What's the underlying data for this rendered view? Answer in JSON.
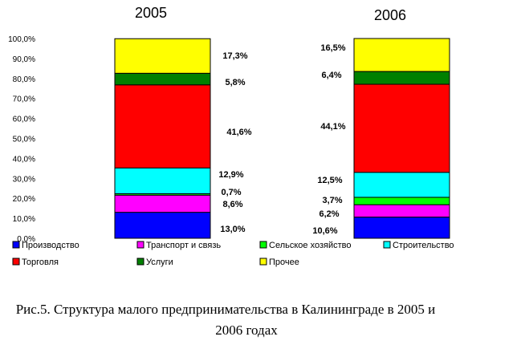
{
  "chart_data": {
    "type": "bar",
    "stacked": true,
    "categories": [
      "2005",
      "2006"
    ],
    "series": [
      {
        "name": "Производство",
        "color": "#0000ff",
        "values": [
          13.0,
          10.6
        ],
        "labels": [
          "13,0%",
          "10,6%"
        ]
      },
      {
        "name": "Транспорт и связь",
        "color": "#ff00ff",
        "values": [
          8.6,
          6.2
        ],
        "labels": [
          "8,6%",
          "6,2%"
        ]
      },
      {
        "name": "Сельское хозяйство",
        "color": "#00ff00",
        "values": [
          0.7,
          3.7
        ],
        "labels": [
          "0,7%",
          "3,7%"
        ]
      },
      {
        "name": "Строительство",
        "color": "#00ffff",
        "values": [
          12.9,
          12.5
        ],
        "labels": [
          "12,9%",
          "12,5%"
        ]
      },
      {
        "name": "Торговля",
        "color": "#ff0000",
        "values": [
          41.6,
          44.1
        ],
        "labels": [
          "41,6%",
          "44,1%"
        ]
      },
      {
        "name": "Услуги",
        "color": "#008000",
        "values": [
          5.8,
          6.4
        ],
        "labels": [
          "5,8%",
          "6,4%"
        ]
      },
      {
        "name": "Прочее",
        "color": "#ffff00",
        "values": [
          17.3,
          16.5
        ],
        "labels": [
          "17,3%",
          "16,5%"
        ]
      }
    ],
    "ylim": [
      0,
      100
    ],
    "yticks": [
      "0,0%",
      "10,0%",
      "20,0%",
      "30,0%",
      "40,0%",
      "50,0%",
      "60,0%",
      "70,0%",
      "80,0%",
      "90,0%",
      "100,0%"
    ],
    "grid": false,
    "legend": "bottom"
  },
  "caption": {
    "line1": "Рис.5. Структура малого предпринимательства в Калининграде в 2005 и",
    "line2": "2006 годах"
  }
}
